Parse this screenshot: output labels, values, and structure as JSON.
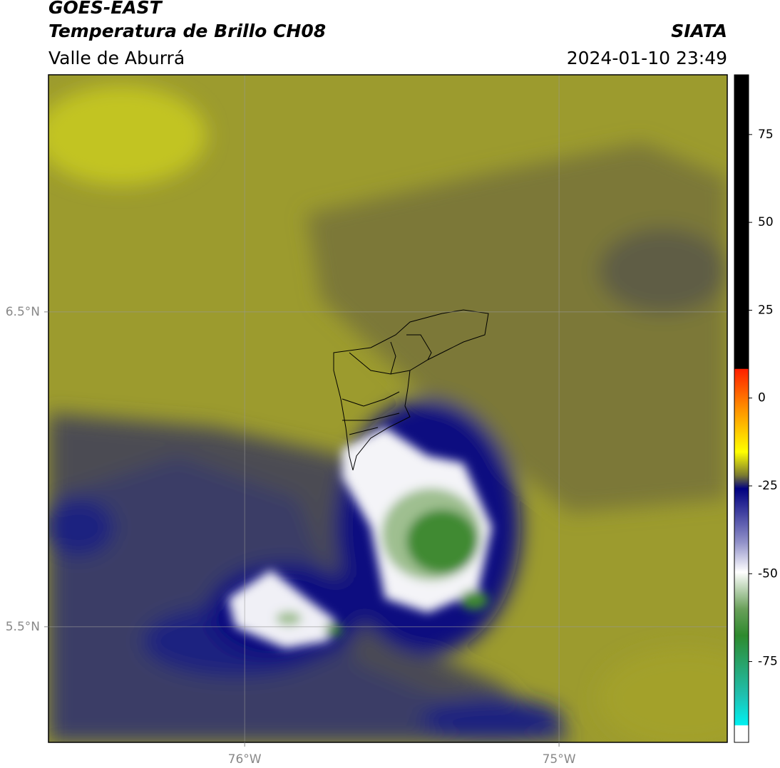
{
  "header": {
    "title": "GOES-EAST",
    "subtitle": "Temperatura de Brillo CH08",
    "region": "Valle de Aburrá",
    "agency": "SIATA",
    "datetime": "2024-01-10 23:49"
  },
  "map": {
    "xlim": [
      -76.624,
      -74.465
    ],
    "ylim": [
      5.133,
      7.253
    ],
    "xticks": [
      {
        "value": -76,
        "label": "76°W"
      },
      {
        "value": -75,
        "label": "75°W"
      }
    ],
    "yticks": [
      {
        "value": 6.5,
        "label": "6.5°N"
      },
      {
        "value": 5.5,
        "label": "5.5°N"
      }
    ],
    "grid": true
  },
  "colorbar": {
    "lim": [
      -98,
      92
    ],
    "ticks": [
      75,
      50,
      25,
      0,
      -25,
      -50,
      -75
    ]
  }
}
